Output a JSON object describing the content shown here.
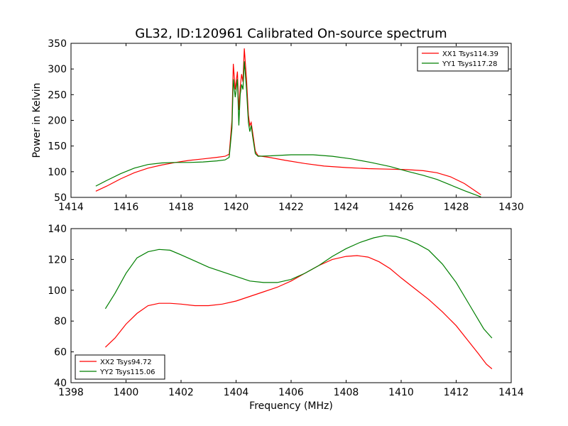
{
  "title": "GL32, ID:120961 Calibrated On-source spectrum",
  "chart_data": [
    {
      "type": "line",
      "title": "GL32, ID:120961 Calibrated On-source spectrum",
      "xlabel": "",
      "ylabel": "Power in Kelvin",
      "xlim": [
        1414,
        1430
      ],
      "ylim": [
        50,
        350
      ],
      "xticks": [
        1414,
        1416,
        1418,
        1420,
        1422,
        1424,
        1426,
        1428,
        1430
      ],
      "yticks": [
        50,
        100,
        150,
        200,
        250,
        300,
        350
      ],
      "legend_position": "top-right",
      "series": [
        {
          "name": "XX1 Tsys114.39",
          "color": "#ff0000",
          "points": [
            [
              1414.9,
              62
            ],
            [
              1415.3,
              72
            ],
            [
              1415.8,
              86
            ],
            [
              1416.3,
              98
            ],
            [
              1416.8,
              107
            ],
            [
              1417.3,
              113
            ],
            [
              1417.8,
              118
            ],
            [
              1418.3,
              122
            ],
            [
              1418.8,
              125
            ],
            [
              1419.3,
              128
            ],
            [
              1419.6,
              130
            ],
            [
              1419.75,
              134
            ],
            [
              1419.85,
              200
            ],
            [
              1419.9,
              310
            ],
            [
              1419.97,
              260
            ],
            [
              1420.05,
              295
            ],
            [
              1420.1,
              220
            ],
            [
              1420.15,
              265
            ],
            [
              1420.2,
              290
            ],
            [
              1420.25,
              275
            ],
            [
              1420.3,
              340
            ],
            [
              1420.38,
              280
            ],
            [
              1420.45,
              210
            ],
            [
              1420.5,
              190
            ],
            [
              1420.55,
              196
            ],
            [
              1420.6,
              178
            ],
            [
              1420.7,
              140
            ],
            [
              1420.8,
              131
            ],
            [
              1421.2,
              128
            ],
            [
              1421.8,
              122
            ],
            [
              1422.5,
              116
            ],
            [
              1423.2,
              111
            ],
            [
              1424,
              108
            ],
            [
              1424.8,
              106
            ],
            [
              1425.5,
              105
            ],
            [
              1426.2,
              104
            ],
            [
              1426.8,
              102
            ],
            [
              1427.3,
              98
            ],
            [
              1427.8,
              90
            ],
            [
              1428.3,
              77
            ],
            [
              1428.9,
              55
            ]
          ]
        },
        {
          "name": "YY1 Tsys117.28",
          "color": "#007f00",
          "points": [
            [
              1414.9,
              72
            ],
            [
              1415.3,
              83
            ],
            [
              1415.8,
              96
            ],
            [
              1416.3,
              107
            ],
            [
              1416.8,
              114
            ],
            [
              1417.3,
              117
            ],
            [
              1417.8,
              118
            ],
            [
              1418.3,
              118
            ],
            [
              1418.8,
              119
            ],
            [
              1419.3,
              121
            ],
            [
              1419.6,
              123
            ],
            [
              1419.75,
              128
            ],
            [
              1419.85,
              185
            ],
            [
              1419.9,
              280
            ],
            [
              1419.97,
              245
            ],
            [
              1420.05,
              280
            ],
            [
              1420.1,
              190
            ],
            [
              1420.15,
              250
            ],
            [
              1420.2,
              270
            ],
            [
              1420.25,
              260
            ],
            [
              1420.3,
              315
            ],
            [
              1420.38,
              260
            ],
            [
              1420.45,
              195
            ],
            [
              1420.5,
              178
            ],
            [
              1420.55,
              190
            ],
            [
              1420.6,
              170
            ],
            [
              1420.7,
              135
            ],
            [
              1420.8,
              130
            ],
            [
              1421.3,
              131
            ],
            [
              1422,
              133
            ],
            [
              1422.8,
              133
            ],
            [
              1423.5,
              130
            ],
            [
              1424.2,
              125
            ],
            [
              1424.9,
              118
            ],
            [
              1425.6,
              110
            ],
            [
              1426.2,
              101
            ],
            [
              1426.8,
              93
            ],
            [
              1427.3,
              85
            ],
            [
              1427.8,
              74
            ],
            [
              1428.3,
              63
            ],
            [
              1428.9,
              51
            ]
          ]
        }
      ]
    },
    {
      "type": "line",
      "title": "",
      "xlabel": "Frequency (MHz)",
      "ylabel": "",
      "xlim": [
        1398,
        1414
      ],
      "ylim": [
        40,
        140
      ],
      "xticks": [
        1398,
        1400,
        1402,
        1404,
        1406,
        1408,
        1410,
        1412,
        1414
      ],
      "yticks": [
        40,
        60,
        80,
        100,
        120,
        140
      ],
      "legend_position": "bottom-left",
      "series": [
        {
          "name": "XX2 Tsys94.72",
          "color": "#ff0000",
          "points": [
            [
              1399.25,
              63
            ],
            [
              1399.6,
              69
            ],
            [
              1400,
              78
            ],
            [
              1400.4,
              85
            ],
            [
              1400.8,
              90
            ],
            [
              1401.2,
              91.5
            ],
            [
              1401.6,
              91.5
            ],
            [
              1402,
              91
            ],
            [
              1402.5,
              90
            ],
            [
              1403,
              90
            ],
            [
              1403.5,
              91
            ],
            [
              1404,
              93
            ],
            [
              1404.5,
              96
            ],
            [
              1405,
              99
            ],
            [
              1405.5,
              102
            ],
            [
              1406,
              106
            ],
            [
              1406.5,
              111
            ],
            [
              1407,
              116
            ],
            [
              1407.5,
              120
            ],
            [
              1408,
              122
            ],
            [
              1408.4,
              122.5
            ],
            [
              1408.8,
              121.5
            ],
            [
              1409.2,
              118.5
            ],
            [
              1409.6,
              114
            ],
            [
              1410,
              108
            ],
            [
              1410.5,
              101
            ],
            [
              1411,
              94
            ],
            [
              1411.5,
              86
            ],
            [
              1412,
              77
            ],
            [
              1412.4,
              68
            ],
            [
              1412.8,
              59
            ],
            [
              1413.1,
              52
            ],
            [
              1413.3,
              49
            ]
          ]
        },
        {
          "name": "YY2 Tsys115.06",
          "color": "#007f00",
          "points": [
            [
              1399.25,
              88
            ],
            [
              1399.6,
              98
            ],
            [
              1400,
              111
            ],
            [
              1400.4,
              121
            ],
            [
              1400.8,
              125
            ],
            [
              1401.2,
              126.5
            ],
            [
              1401.6,
              126
            ],
            [
              1402,
              123
            ],
            [
              1402.5,
              119
            ],
            [
              1403,
              115
            ],
            [
              1403.5,
              112
            ],
            [
              1404,
              109
            ],
            [
              1404.5,
              106
            ],
            [
              1405,
              105
            ],
            [
              1405.5,
              105
            ],
            [
              1406,
              107
            ],
            [
              1406.5,
              111
            ],
            [
              1407,
              116
            ],
            [
              1407.5,
              122
            ],
            [
              1408,
              127
            ],
            [
              1408.5,
              131
            ],
            [
              1409,
              134
            ],
            [
              1409.4,
              135.5
            ],
            [
              1409.8,
              135
            ],
            [
              1410.2,
              133
            ],
            [
              1410.6,
              130
            ],
            [
              1411,
              126
            ],
            [
              1411.5,
              117
            ],
            [
              1412,
              105
            ],
            [
              1412.5,
              90
            ],
            [
              1413,
              75
            ],
            [
              1413.3,
              69
            ]
          ]
        }
      ]
    }
  ]
}
